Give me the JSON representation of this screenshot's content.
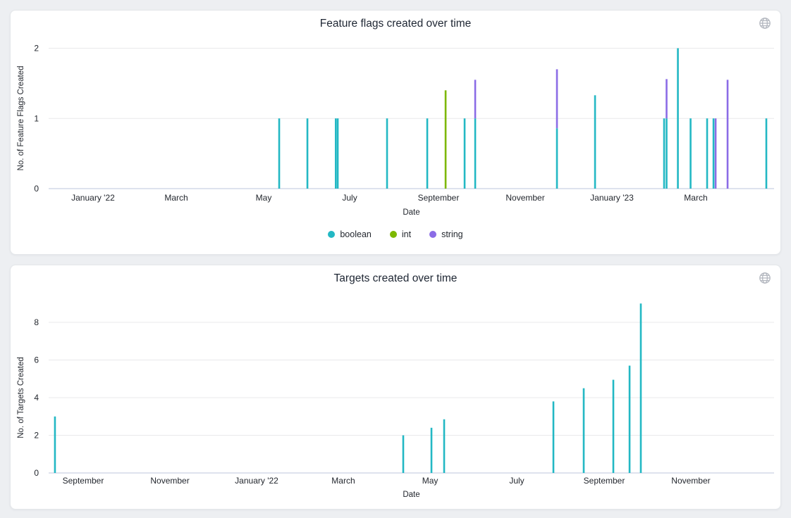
{
  "theme": {
    "page_bg": "#edeff2",
    "card_bg": "#ffffff",
    "grid_color": "#e9e9eb",
    "axis_line_color": "#c9d0e4",
    "text_color": "#23272e",
    "title_color": "#1e2633",
    "globe_icon_color": "#b3b7bf"
  },
  "chart_data": [
    {
      "type": "bar",
      "title": "Feature flags created over time",
      "xlabel": "Date",
      "ylabel": "No. of Feature Flags Created",
      "ylim": [
        0,
        2
      ],
      "yticks": [
        0,
        1,
        2
      ],
      "grid": true,
      "legend_position": "bottom-center",
      "legend": [
        {
          "name": "boolean",
          "color": "#23b8c4"
        },
        {
          "name": "int",
          "color": "#7db800"
        },
        {
          "name": "string",
          "color": "#8b6ce6"
        }
      ],
      "xticks": [
        {
          "label": "January '22",
          "f": 0.0612
        },
        {
          "label": "March",
          "f": 0.1759
        },
        {
          "label": "May",
          "f": 0.2964
        },
        {
          "label": "July",
          "f": 0.415
        },
        {
          "label": "September",
          "f": 0.5374
        },
        {
          "label": "November",
          "f": 0.657
        },
        {
          "label": "January '23",
          "f": 0.7765
        },
        {
          "label": "March",
          "f": 0.8921
        }
      ],
      "bars": [
        {
          "date": "2022-05-11",
          "f": 0.3178,
          "stack": [
            {
              "series": "boolean",
              "value": 1
            }
          ]
        },
        {
          "date": "2022-05-30",
          "f": 0.3567,
          "stack": [
            {
              "series": "boolean",
              "value": 1
            }
          ]
        },
        {
          "date": "2022-06-20",
          "f": 0.3958,
          "stack": [
            {
              "series": "boolean",
              "value": 1
            }
          ]
        },
        {
          "date": "2022-06-22",
          "f": 0.3985,
          "stack": [
            {
              "series": "boolean",
              "value": 1
            }
          ]
        },
        {
          "date": "2022-07-26",
          "f": 0.4665,
          "stack": [
            {
              "series": "boolean",
              "value": 1
            }
          ]
        },
        {
          "date": "2022-08-24",
          "f": 0.5219,
          "stack": [
            {
              "series": "boolean",
              "value": 1
            }
          ]
        },
        {
          "date": "2022-09-07",
          "f": 0.5472,
          "stack": [
            {
              "series": "int",
              "value": 1.4
            }
          ]
        },
        {
          "date": "2022-09-20",
          "f": 0.5734,
          "stack": [
            {
              "series": "boolean",
              "value": 1
            }
          ]
        },
        {
          "date": "2022-09-27",
          "f": 0.588,
          "stack": [
            {
              "series": "boolean",
              "value": 1
            },
            {
              "series": "string",
              "value": 0.55
            }
          ]
        },
        {
          "date": "2022-11-25",
          "f": 0.7007,
          "stack": [
            {
              "series": "boolean",
              "value": 0.86
            },
            {
              "series": "string",
              "value": 0.84
            }
          ]
        },
        {
          "date": "2022-12-21",
          "f": 0.7532,
          "stack": [
            {
              "series": "boolean",
              "value": 1.33
            }
          ]
        },
        {
          "date": "2023-02-09",
          "f": 0.8484,
          "stack": [
            {
              "series": "boolean",
              "value": 1
            }
          ]
        },
        {
          "date": "2023-02-10",
          "f": 0.8518,
          "stack": [
            {
              "series": "boolean",
              "value": 1
            },
            {
              "series": "string",
              "value": 0.56
            }
          ]
        },
        {
          "date": "2023-02-19",
          "f": 0.8674,
          "stack": [
            {
              "series": "boolean",
              "value": 2
            }
          ]
        },
        {
          "date": "2023-02-27",
          "f": 0.8849,
          "stack": [
            {
              "series": "boolean",
              "value": 1
            }
          ]
        },
        {
          "date": "2023-03-09",
          "f": 0.9077,
          "stack": [
            {
              "series": "boolean",
              "value": 1
            }
          ]
        },
        {
          "date": "2023-03-13",
          "f": 0.9165,
          "stack": [
            {
              "series": "boolean",
              "value": 1
            }
          ]
        },
        {
          "date": "2023-03-15",
          "f": 0.9194,
          "stack": [
            {
              "series": "string",
              "value": 1
            }
          ]
        },
        {
          "date": "2023-03-23",
          "f": 0.9359,
          "stack": [
            {
              "series": "string",
              "value": 1.55
            }
          ]
        },
        {
          "date": "2023-04-20",
          "f": 0.9893,
          "stack": [
            {
              "series": "boolean",
              "value": 1
            }
          ]
        }
      ]
    },
    {
      "type": "bar",
      "title": "Targets created over time",
      "xlabel": "Date",
      "ylabel": "No. of Targets Created",
      "ylim": [
        0,
        9
      ],
      "yticks": [
        0,
        2,
        4,
        6,
        8
      ],
      "grid": true,
      "legend": [],
      "bar_color": "#23b8c4",
      "xticks": [
        {
          "label": "September",
          "f": 0.0476
        },
        {
          "label": "November",
          "f": 0.1672
        },
        {
          "label": "January '22",
          "f": 0.2867
        },
        {
          "label": "March",
          "f": 0.4062
        },
        {
          "label": "May",
          "f": 0.5258
        },
        {
          "label": "July",
          "f": 0.6453
        },
        {
          "label": "September",
          "f": 0.7658
        },
        {
          "label": "November",
          "f": 0.8853
        }
      ],
      "bars": [
        {
          "date": "2021-08-11",
          "f": 0.0087,
          "value": 3
        },
        {
          "date": "2022-04-12",
          "f": 0.4888,
          "value": 2
        },
        {
          "date": "2022-05-01",
          "f": 0.5277,
          "value": 2.4
        },
        {
          "date": "2022-05-10",
          "f": 0.5452,
          "value": 2.85
        },
        {
          "date": "2022-07-26",
          "f": 0.6958,
          "value": 3.8
        },
        {
          "date": "2022-08-16",
          "f": 0.7376,
          "value": 4.5
        },
        {
          "date": "2022-09-07",
          "f": 0.7784,
          "value": 4.95
        },
        {
          "date": "2022-09-18",
          "f": 0.8008,
          "value": 5.7
        },
        {
          "date": "2022-09-26",
          "f": 0.8163,
          "value": 9
        }
      ]
    }
  ]
}
